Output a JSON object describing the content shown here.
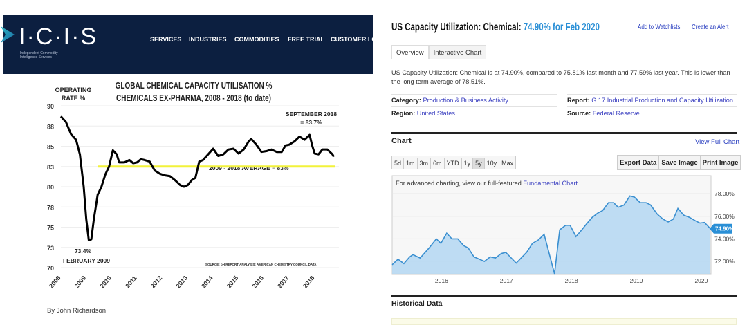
{
  "left": {
    "logo": {
      "text": "I·C·I·S",
      "subtitle": "Independent Commodity Intelligence Services"
    },
    "nav": [
      "SERVICES",
      "INDUSTRIES",
      "COMMODITIES",
      "FREE TRIAL",
      "CUSTOMER LO"
    ],
    "byline": "By John Richardson"
  },
  "right": {
    "title_prefix": "US Capacity Utilization: Chemical:",
    "title_value": "74.90% for Feb 2020",
    "add_watchlist": "Add to Watchlists",
    "create_alert": "Create an Alert",
    "tabs": [
      "Overview",
      "Interactive Chart"
    ],
    "description": "US Capacity Utilization: Chemical is at 74.90%, compared to 75.81% last month and 77.59% last year. This is lower than the long term average of 78.51%.",
    "meta": {
      "category_label": "Category:",
      "category": "Production & Business Activity",
      "region_label": "Region:",
      "region": "United States",
      "report_label": "Report:",
      "report": "G.17 Industrial Production and Capacity Utilization",
      "source_label": "Source:",
      "source": "Federal Reserve"
    },
    "chart_heading": "Chart",
    "view_full_chart": "View Full Chart",
    "ranges": [
      "5d",
      "1m",
      "3m",
      "6m",
      "YTD",
      "1y",
      "5y",
      "10y",
      "Max"
    ],
    "selected_range": "5y",
    "actions": [
      "Export Data",
      "Save Image",
      "Print Image"
    ],
    "advanced_prefix": "For advanced charting, view our full-featured ",
    "advanced_link": "Fundamental Chart",
    "historical_heading": "Historical Data"
  },
  "chart_data": [
    {
      "type": "line",
      "title": "GLOBAL CHEMICAL CAPACITY UTILISATION %",
      "subtitle": "CHEMICALS EX-PHARMA, 2008 - 2018 (to date)",
      "ylabel": "OPERATING RATE %",
      "ylim": [
        70,
        90
      ],
      "yticks": [
        90,
        87.5,
        85,
        82.5,
        80,
        77.5,
        75,
        72.5,
        70
      ],
      "ytick_labels": [
        "90",
        "88",
        "85",
        "83",
        "80",
        "78",
        "75",
        "73",
        "70"
      ],
      "xlim": [
        2008,
        2019
      ],
      "xtick_labels": [
        "2008",
        "2009",
        "2010",
        "2011",
        "2012",
        "2013",
        "2014",
        "2015",
        "2016",
        "2017",
        "2018"
      ],
      "grid": true,
      "line_color": "#000000",
      "average": {
        "value": 83,
        "label": "2009 - 2018 AVERAGE = 83%",
        "color": "#f2f23a"
      },
      "annotations": [
        {
          "text": "SEPTEMBER 2018",
          "text2": "= 83.7%"
        },
        {
          "text": "73.4%",
          "text2": "FEBRUARY 2009"
        }
      ],
      "source": "SOURCE: pH REPORT ANALYSIS: AMERICAN CHEMISTRY COUNCIL DATA",
      "x": [
        2008.0,
        2008.2,
        2008.4,
        2008.6,
        2008.75,
        2008.9,
        2009.0,
        2009.1,
        2009.2,
        2009.3,
        2009.45,
        2009.6,
        2009.75,
        2009.9,
        2010.05,
        2010.2,
        2010.3,
        2010.5,
        2010.7,
        2010.85,
        2011.0,
        2011.15,
        2011.3,
        2011.5,
        2011.7,
        2011.9,
        2012.1,
        2012.3,
        2012.5,
        2012.7,
        2012.85,
        2013.0,
        2013.15,
        2013.3,
        2013.45,
        2013.6,
        2013.8,
        2014.0,
        2014.2,
        2014.4,
        2014.6,
        2014.8,
        2015.0,
        2015.2,
        2015.4,
        2015.5,
        2015.7,
        2015.9,
        2016.1,
        2016.3,
        2016.5,
        2016.7,
        2016.85,
        2017.0,
        2017.2,
        2017.4,
        2017.6,
        2017.8,
        2017.9,
        2018.0,
        2018.15,
        2018.3,
        2018.5,
        2018.7,
        2018.75
      ],
      "y": [
        88.7,
        88.0,
        86.5,
        85.8,
        84.0,
        80.0,
        76.0,
        73.4,
        73.5,
        76.0,
        79.0,
        80.0,
        81.5,
        82.5,
        84.5,
        84.0,
        83.0,
        83.0,
        83.3,
        82.9,
        83.0,
        83.4,
        83.3,
        83.1,
        82.0,
        81.6,
        81.4,
        81.3,
        80.8,
        80.2,
        80.0,
        80.2,
        80.8,
        81.1,
        83.1,
        83.3,
        84.0,
        84.7,
        83.8,
        84.0,
        84.6,
        84.7,
        84.1,
        84.6,
        85.6,
        85.9,
        85.2,
        84.3,
        84.4,
        84.6,
        84.3,
        84.3,
        85.1,
        85.2,
        85.6,
        86.2,
        85.8,
        86.4,
        85.1,
        84.1,
        84.0,
        84.6,
        84.6,
        84.0,
        83.7
      ]
    },
    {
      "type": "area",
      "ylim": [
        70.9,
        79.6
      ],
      "yticks": [
        72,
        74,
        76,
        78
      ],
      "ytick_labels": [
        "72.00%",
        "74.00%",
        "76.00%",
        "78.00%"
      ],
      "xlim": [
        2015.24,
        2020.15
      ],
      "xtick_labels": [
        "2016",
        "2017",
        "2018",
        "2019",
        "2020"
      ],
      "grid": true,
      "line_color": "#3a8fd0",
      "fill_color": "#b7d8f2",
      "last_value_label": "74.90%",
      "x": [
        2015.24,
        2015.33,
        2015.42,
        2015.51,
        2015.56,
        2015.67,
        2015.81,
        2015.92,
        2015.99,
        2016.08,
        2016.16,
        2016.25,
        2016.34,
        2016.41,
        2016.5,
        2016.66,
        2016.75,
        2016.83,
        2016.92,
        2016.99,
        2017.15,
        2017.31,
        2017.4,
        2017.49,
        2017.58,
        2017.74,
        2017.82,
        2017.91,
        2017.98,
        2018.07,
        2018.16,
        2018.23,
        2018.32,
        2018.41,
        2018.48,
        2018.57,
        2018.65,
        2018.72,
        2018.81,
        2018.9,
        2018.97,
        2019.06,
        2019.15,
        2019.22,
        2019.32,
        2019.41,
        2019.49,
        2019.57,
        2019.64,
        2019.73,
        2019.82,
        2019.91,
        2019.98,
        2020.05,
        2020.14
      ],
      "y": [
        71.7,
        72.2,
        71.8,
        72.4,
        72.6,
        72.3,
        73.2,
        74.0,
        73.6,
        74.5,
        74.0,
        74.0,
        73.4,
        73.2,
        72.4,
        72.0,
        72.4,
        72.3,
        72.7,
        72.8,
        71.85,
        72.8,
        73.6,
        73.9,
        74.4,
        70.9,
        74.8,
        75.2,
        75.2,
        74.2,
        74.8,
        75.3,
        75.9,
        76.3,
        76.5,
        77.2,
        77.2,
        76.8,
        77.0,
        77.8,
        77.7,
        77.2,
        77.2,
        77.0,
        76.2,
        75.75,
        75.5,
        75.75,
        76.7,
        76.1,
        75.9,
        75.6,
        75.4,
        75.45,
        74.9
      ]
    }
  ]
}
